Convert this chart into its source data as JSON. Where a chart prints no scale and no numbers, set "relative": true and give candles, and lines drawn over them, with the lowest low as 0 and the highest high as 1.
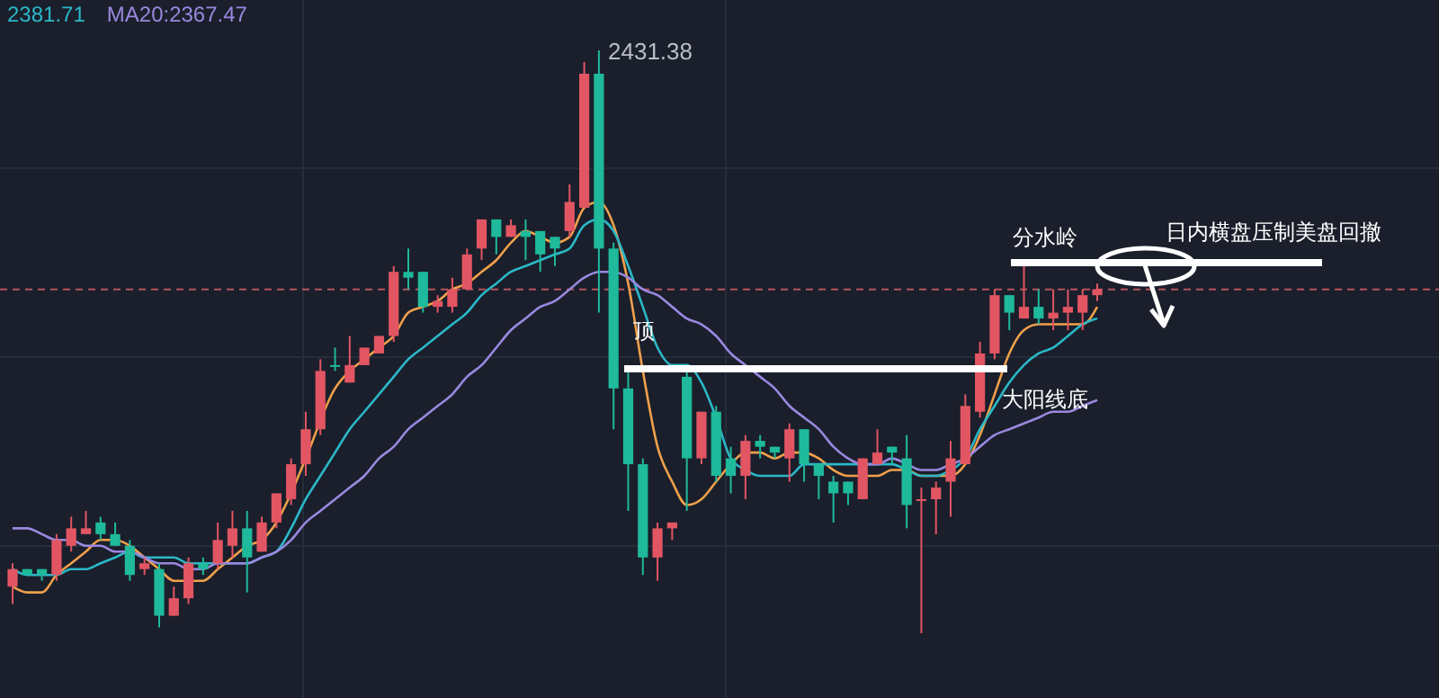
{
  "chart_data": {
    "type": "candlestick",
    "relative": true,
    "categories": [
      null,
      null,
      null,
      null,
      null,
      null,
      null,
      null,
      null,
      null,
      null,
      null,
      null,
      null,
      null,
      null,
      null,
      null,
      null,
      null,
      null,
      null,
      null,
      null,
      null,
      null,
      null,
      null,
      null,
      null,
      null,
      null,
      null,
      null,
      null,
      null,
      null,
      null,
      null,
      null,
      null,
      null,
      null,
      null,
      null,
      null,
      null,
      null,
      null,
      null,
      null,
      null,
      null,
      null,
      null,
      null,
      null,
      null,
      null,
      null,
      null,
      null,
      null,
      null,
      null,
      null,
      null,
      null,
      null,
      null,
      null,
      null,
      null,
      null,
      null
    ],
    "ohlc": [
      [
        0.08,
        0.12,
        0.05,
        0.11
      ],
      [
        0.11,
        0.11,
        0.1,
        0.1
      ],
      [
        0.11,
        0.11,
        0.09,
        0.1
      ],
      [
        0.1,
        0.17,
        0.09,
        0.16
      ],
      [
        0.15,
        0.2,
        0.14,
        0.18
      ],
      [
        0.17,
        0.21,
        0.17,
        0.18
      ],
      [
        0.19,
        0.2,
        0.16,
        0.17
      ],
      [
        0.17,
        0.19,
        0.15,
        0.15
      ],
      [
        0.15,
        0.16,
        0.09,
        0.1
      ],
      [
        0.11,
        0.13,
        0.1,
        0.12
      ],
      [
        0.11,
        0.12,
        0.01,
        0.03
      ],
      [
        0.03,
        0.08,
        0.03,
        0.06
      ],
      [
        0.06,
        0.13,
        0.05,
        0.12
      ],
      [
        0.12,
        0.13,
        0.1,
        0.11
      ],
      [
        0.12,
        0.19,
        0.11,
        0.16
      ],
      [
        0.15,
        0.21,
        0.13,
        0.18
      ],
      [
        0.18,
        0.21,
        0.07,
        0.13
      ],
      [
        0.14,
        0.2,
        0.14,
        0.19
      ],
      [
        0.19,
        0.24,
        0.18,
        0.24
      ],
      [
        0.23,
        0.3,
        0.22,
        0.29
      ],
      [
        0.29,
        0.38,
        0.27,
        0.35
      ],
      [
        0.35,
        0.47,
        0.34,
        0.45
      ],
      [
        0.46,
        0.49,
        0.45,
        0.46
      ],
      [
        0.43,
        0.51,
        0.43,
        0.46
      ],
      [
        0.46,
        0.49,
        0.46,
        0.49
      ],
      [
        0.48,
        0.51,
        0.48,
        0.51
      ],
      [
        0.51,
        0.63,
        0.5,
        0.62
      ],
      [
        0.62,
        0.66,
        0.59,
        0.61
      ],
      [
        0.62,
        0.62,
        0.55,
        0.56
      ],
      [
        0.56,
        0.58,
        0.55,
        0.57
      ],
      [
        0.56,
        0.61,
        0.55,
        0.59
      ],
      [
        0.59,
        0.66,
        0.59,
        0.65
      ],
      [
        0.66,
        0.71,
        0.64,
        0.71
      ],
      [
        0.71,
        0.71,
        0.65,
        0.68
      ],
      [
        0.68,
        0.71,
        0.68,
        0.7
      ],
      [
        0.69,
        0.71,
        0.64,
        0.68
      ],
      [
        0.69,
        0.69,
        0.62,
        0.65
      ],
      [
        0.68,
        0.68,
        0.63,
        0.66
      ],
      [
        0.69,
        0.77,
        0.68,
        0.74
      ],
      [
        0.73,
        0.98,
        0.73,
        0.96
      ],
      [
        0.96,
        1,
        0.55,
        0.66
      ],
      [
        0.66,
        0.67,
        0.35,
        0.42
      ],
      [
        0.42,
        0.45,
        0.21,
        0.29
      ],
      [
        0.29,
        0.3,
        0.1,
        0.13
      ],
      [
        0.13,
        0.19,
        0.09,
        0.18
      ],
      [
        0.18,
        0.19,
        0.16,
        0.19
      ],
      [
        0.44,
        0.45,
        0.21,
        0.3
      ],
      [
        0.3,
        0.38,
        0.29,
        0.38
      ],
      [
        0.38,
        0.39,
        0.26,
        0.27
      ],
      [
        0.3,
        0.32,
        0.24,
        0.27
      ],
      [
        0.27,
        0.34,
        0.23,
        0.33
      ],
      [
        0.33,
        0.34,
        0.3,
        0.32
      ],
      [
        0.32,
        0.32,
        0.3,
        0.31
      ],
      [
        0.3,
        0.36,
        0.26,
        0.35
      ],
      [
        0.35,
        0.35,
        0.26,
        0.29
      ],
      [
        0.29,
        0.29,
        0.23,
        0.27
      ],
      [
        0.26,
        0.27,
        0.19,
        0.24
      ],
      [
        0.26,
        0.26,
        0.22,
        0.24
      ],
      [
        0.23,
        0.3,
        0.23,
        0.3
      ],
      [
        0.29,
        0.35,
        0.29,
        0.31
      ],
      [
        0.32,
        0.32,
        0.29,
        0.31
      ],
      [
        0.3,
        0.34,
        0.18,
        0.22
      ],
      [
        0.23,
        0.25,
        0,
        0.23
      ],
      [
        0.23,
        0.26,
        0.17,
        0.25
      ],
      [
        0.26,
        0.33,
        0.2,
        0.3
      ],
      [
        0.29,
        0.41,
        0.29,
        0.39
      ],
      [
        0.38,
        0.5,
        0.37,
        0.48
      ],
      [
        0.48,
        0.59,
        0.47,
        0.58
      ],
      [
        0.58,
        0.58,
        0.52,
        0.55
      ],
      [
        0.54,
        0.63,
        0.54,
        0.56
      ],
      [
        0.56,
        0.59,
        0.53,
        0.54
      ],
      [
        0.54,
        0.59,
        0.52,
        0.55
      ],
      [
        0.55,
        0.59,
        0.52,
        0.56
      ],
      [
        0.55,
        0.59,
        0.52,
        0.58
      ],
      [
        0.58,
        0.6,
        0.57,
        0.59
      ]
    ],
    "colors": [
      "#e25563",
      "#1fb99b",
      "#1fb99b",
      "#e25563",
      "#e25563",
      "#e25563",
      "#1fb99b",
      "#1fb99b",
      "#1fb99b",
      "#e25563",
      "#1fb99b",
      "#e25563",
      "#e25563",
      "#1fb99b",
      "#e25563",
      "#e25563",
      "#1fb99b",
      "#e25563",
      "#e25563",
      "#e25563",
      "#e25563",
      "#e25563",
      "#1fb99b",
      "#e25563",
      "#e25563",
      "#e25563",
      "#e25563",
      "#1fb99b",
      "#1fb99b",
      "#e25563",
      "#e25563",
      "#e25563",
      "#e25563",
      "#1fb99b",
      "#e25563",
      "#1fb99b",
      "#1fb99b",
      "#1fb99b",
      "#e25563",
      "#e25563",
      "#1fb99b",
      "#1fb99b",
      "#1fb99b",
      "#1fb99b",
      "#e25563",
      "#e25563",
      "#1fb99b",
      "#e25563",
      "#1fb99b",
      "#1fb99b",
      "#e25563",
      "#1fb99b",
      "#1fb99b",
      "#e25563",
      "#1fb99b",
      "#1fb99b",
      "#1fb99b",
      "#1fb99b",
      "#e25563",
      "#e25563",
      "#1fb99b",
      "#1fb99b",
      "#e25563",
      "#e25563",
      "#e25563",
      "#e25563",
      "#e25563",
      "#e25563",
      "#1fb99b",
      "#e25563",
      "#1fb99b",
      "#e25563",
      "#e25563",
      "#e25563",
      "#e25563"
    ],
    "series": [
      {
        "type": "line",
        "color": "#f0a04b",
        "values": [
          0.08,
          0.07,
          0.07,
          0.1,
          0.12,
          0.14,
          0.16,
          0.16,
          0.15,
          0.13,
          0.11,
          0.09,
          0.09,
          0.09,
          0.11,
          0.13,
          0.15,
          0.16,
          0.19,
          0.24,
          0.3,
          null,
          0.42,
          0.45,
          0.47,
          0.49,
          0.51,
          0.55,
          0.56,
          0.57,
          0.59,
          0.6,
          0.62,
          0.64,
          0.67,
          0.69,
          0.68,
          0.67,
          0.68,
          0.73,
          0.74,
          0.7,
          0.6,
          0.45,
          0.32,
          0.26,
          0.22,
          0.23,
          0.26,
          0.29,
          0.31,
          0.31,
          0.3,
          0.31,
          0.31,
          0.3,
          0.28,
          0.27,
          0.27,
          0.27,
          0.28,
          0.28,
          0.27,
          0.27,
          0.27,
          0.29,
          0.34,
          0.41,
          0.48,
          0.52,
          0.53,
          0.53,
          0.53,
          0.53,
          0.56
        ]
      },
      {
        "type": "line",
        "name": "2381.71",
        "color": "#2bb8c8",
        "values": [
          0.11,
          0.1,
          0.1,
          0.1,
          0.11,
          0.11,
          0.12,
          0.13,
          0.14,
          0.13,
          0.13,
          0.13,
          0.12,
          0.12,
          0.12,
          0.12,
          0.12,
          0.13,
          0.14,
          0.18,
          0.23,
          0.27,
          0.31,
          0.35,
          0.38,
          0.41,
          0.44,
          0.47,
          0.49,
          0.51,
          0.53,
          0.55,
          0.58,
          0.6,
          0.62,
          0.63,
          0.64,
          0.65,
          0.66,
          0.7,
          0.71,
          0.69,
          0.63,
          0.56,
          0.49,
          0.46,
          0.46,
          0.43,
          0.37,
          0.3,
          0.28,
          0.27,
          0.27,
          0.27,
          0.29,
          0.29,
          0.29,
          0.29,
          0.29,
          0.29,
          0.29,
          0.28,
          0.27,
          0.27,
          0.28,
          0.3,
          0.35,
          0.39,
          0.43,
          0.46,
          0.48,
          0.49,
          0.51,
          0.53,
          0.54
        ]
      },
      {
        "type": "line",
        "name": "MA20:2367.47",
        "color": "#9b88e0",
        "values": [
          0.18,
          0.18,
          0.17,
          0.16,
          0.16,
          0.15,
          0.15,
          0.14,
          0.14,
          0.13,
          0.12,
          0.12,
          0.11,
          0.11,
          0.12,
          0.12,
          0.12,
          0.13,
          0.14,
          0.16,
          0.19,
          0.21,
          0.23,
          0.25,
          0.27,
          0.3,
          0.32,
          0.35,
          0.37,
          0.39,
          0.41,
          0.44,
          0.46,
          0.49,
          0.52,
          0.54,
          0.56,
          0.57,
          0.59,
          0.61,
          0.62,
          0.62,
          0.61,
          0.59,
          0.58,
          0.56,
          0.54,
          0.53,
          0.51,
          0.48,
          0.46,
          0.44,
          0.42,
          0.39,
          0.37,
          0.35,
          0.32,
          0.3,
          0.29,
          0.29,
          0.3,
          0.29,
          0.28,
          0.28,
          0.29,
          0.3,
          0.32,
          0.34,
          0.35,
          0.36,
          0.37,
          0.38,
          0.38,
          0.39,
          0.4
        ]
      }
    ],
    "ref_lines": [
      {
        "axis": "y",
        "value": 0.59,
        "color": "#b5545f",
        "line_style": "dashed"
      }
    ],
    "annotations": [
      "2431.38",
      "顶",
      "大阳线底",
      "分水岭",
      "日内横盘压制美盘回撤"
    ],
    "legend": "top left"
  }
}
